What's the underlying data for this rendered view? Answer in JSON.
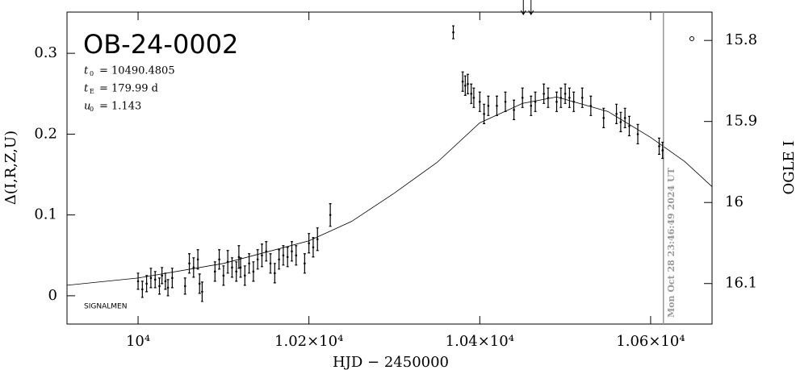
{
  "chart_data": {
    "type": "errorbar",
    "title": "OB-24-0002",
    "params": [
      {
        "name": "t",
        "sub": "0",
        "text": "= 10490.4805"
      },
      {
        "name": "t",
        "sub": "E",
        "text": "= 179.99 d"
      },
      {
        "name": "u",
        "sub": "0",
        "text": "= 1.143"
      }
    ],
    "corner_label": "SIGNALMEN",
    "xlabel": "HJD − 2450000",
    "ylabel": "Δ(I,R,Z,U)",
    "y2label": "OGLE I",
    "xlim": [
      9916.8,
      10671.9
    ],
    "ylim": [
      -0.035,
      0.351
    ],
    "y2lim": [
      16.15,
      15.765
    ],
    "xticks": [
      {
        "value": 10000,
        "label": "10⁴"
      },
      {
        "value": 10200,
        "label": "1.02×10⁴"
      },
      {
        "value": 10400,
        "label": "1.04×10⁴"
      },
      {
        "value": 10600,
        "label": "1.06×10⁴"
      }
    ],
    "yticks": [
      0,
      0.1,
      0.2,
      0.3
    ],
    "y2ticks": [
      15.8,
      15.9,
      16,
      16.1
    ],
    "color": "#000000",
    "x": [
      10000,
      10005,
      10010,
      10015,
      10020,
      10025,
      10028,
      10032,
      10035,
      10040,
      10055,
      10060,
      10065,
      10070,
      10072,
      10075,
      10090,
      10095,
      10100,
      10105,
      10110,
      10115,
      10118,
      10120,
      10125,
      10130,
      10135,
      10140,
      10145,
      10150,
      10155,
      10160,
      10165,
      10170,
      10175,
      10180,
      10185,
      10195,
      10200,
      10205,
      10210,
      10225,
      10369,
      10380,
      10383,
      10386,
      10390,
      10393,
      10400,
      10405,
      10410,
      10420,
      10430,
      10440,
      10450,
      10460,
      10465,
      10475,
      10480,
      10490,
      10495,
      10500,
      10505,
      10510,
      10520,
      10530,
      10545,
      10560,
      10565,
      10570,
      10575,
      10585,
      10610,
      10614
    ],
    "values": [
      0.018,
      0.008,
      0.015,
      0.022,
      0.02,
      0.012,
      0.025,
      0.018,
      0.01,
      0.022,
      0.012,
      0.04,
      0.035,
      0.045,
      0.015,
      0.005,
      0.03,
      0.045,
      0.025,
      0.042,
      0.035,
      0.03,
      0.048,
      0.035,
      0.025,
      0.04,
      0.03,
      0.045,
      0.05,
      0.055,
      0.04,
      0.028,
      0.045,
      0.05,
      0.048,
      0.055,
      0.05,
      0.04,
      0.065,
      0.06,
      0.07,
      0.1,
      0.326,
      0.265,
      0.26,
      0.262,
      0.25,
      0.245,
      0.24,
      0.225,
      0.235,
      0.235,
      0.24,
      0.23,
      0.245,
      0.235,
      0.24,
      0.25,
      0.245,
      0.24,
      0.245,
      0.25,
      0.245,
      0.24,
      0.245,
      0.235,
      0.22,
      0.225,
      0.215,
      0.22,
      0.21,
      0.2,
      0.185,
      0.18
    ],
    "errors": [
      0.01,
      0.01,
      0.01,
      0.012,
      0.01,
      0.01,
      0.01,
      0.01,
      0.01,
      0.012,
      0.01,
      0.012,
      0.012,
      0.012,
      0.012,
      0.012,
      0.012,
      0.012,
      0.012,
      0.014,
      0.012,
      0.012,
      0.014,
      0.012,
      0.012,
      0.012,
      0.012,
      0.012,
      0.014,
      0.012,
      0.012,
      0.012,
      0.012,
      0.012,
      0.012,
      0.012,
      0.012,
      0.012,
      0.012,
      0.012,
      0.014,
      0.014,
      0.008,
      0.012,
      0.012,
      0.012,
      0.012,
      0.012,
      0.012,
      0.012,
      0.012,
      0.012,
      0.012,
      0.012,
      0.012,
      0.012,
      0.012,
      0.012,
      0.012,
      0.012,
      0.012,
      0.012,
      0.012,
      0.012,
      0.012,
      0.012,
      0.012,
      0.012,
      0.012,
      0.012,
      0.012,
      0.012,
      0.01,
      0.01
    ],
    "model": {
      "x": [
        9916.8,
        10000,
        10100,
        10200,
        10250,
        10300,
        10350,
        10400,
        10450,
        10490,
        10550,
        10600,
        10640,
        10671.9
      ],
      "values": [
        0.013,
        0.022,
        0.04,
        0.068,
        0.092,
        0.127,
        0.165,
        0.214,
        0.238,
        0.246,
        0.228,
        0.196,
        0.166,
        0.135
      ]
    },
    "now_x": 10615,
    "now_label": "Mon Oct 28 23:46:49 2024 UT",
    "now_color": "#999999",
    "arrows_x": [
      10451,
      10460
    ]
  }
}
